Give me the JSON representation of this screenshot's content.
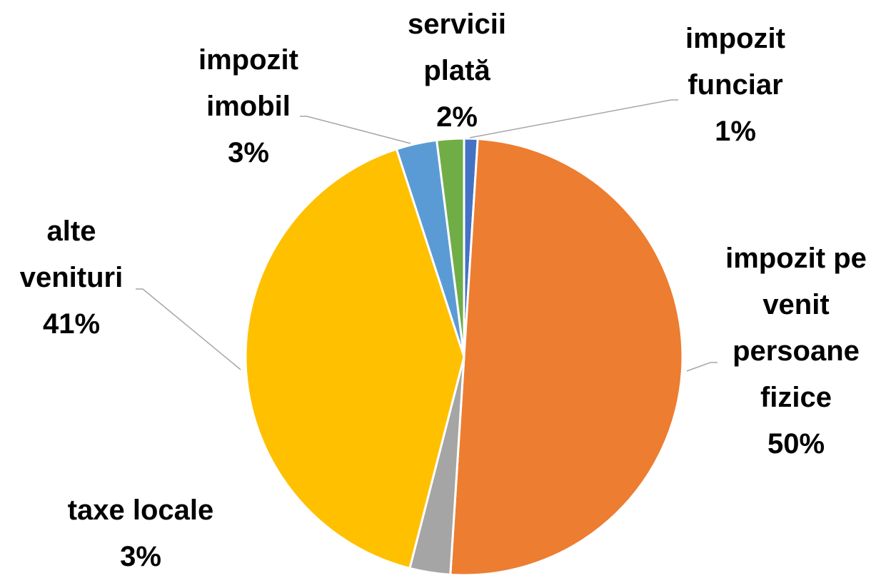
{
  "chart_data": {
    "type": "pie",
    "categories": [
      "impozit funciar",
      "impozit pe venit persoane fizice",
      "taxe locale",
      "alte venituri",
      "impozit imobil",
      "servicii plată"
    ],
    "values": [
      1,
      50,
      3,
      41,
      3,
      2
    ],
    "value_labels": [
      "1%",
      "50%",
      "3%",
      "41%",
      "3%",
      "2%"
    ],
    "colors": [
      "#4472c4",
      "#ed7d31",
      "#a5a5a5",
      "#ffc000",
      "#5b9bd5",
      "#70ad47"
    ]
  }
}
